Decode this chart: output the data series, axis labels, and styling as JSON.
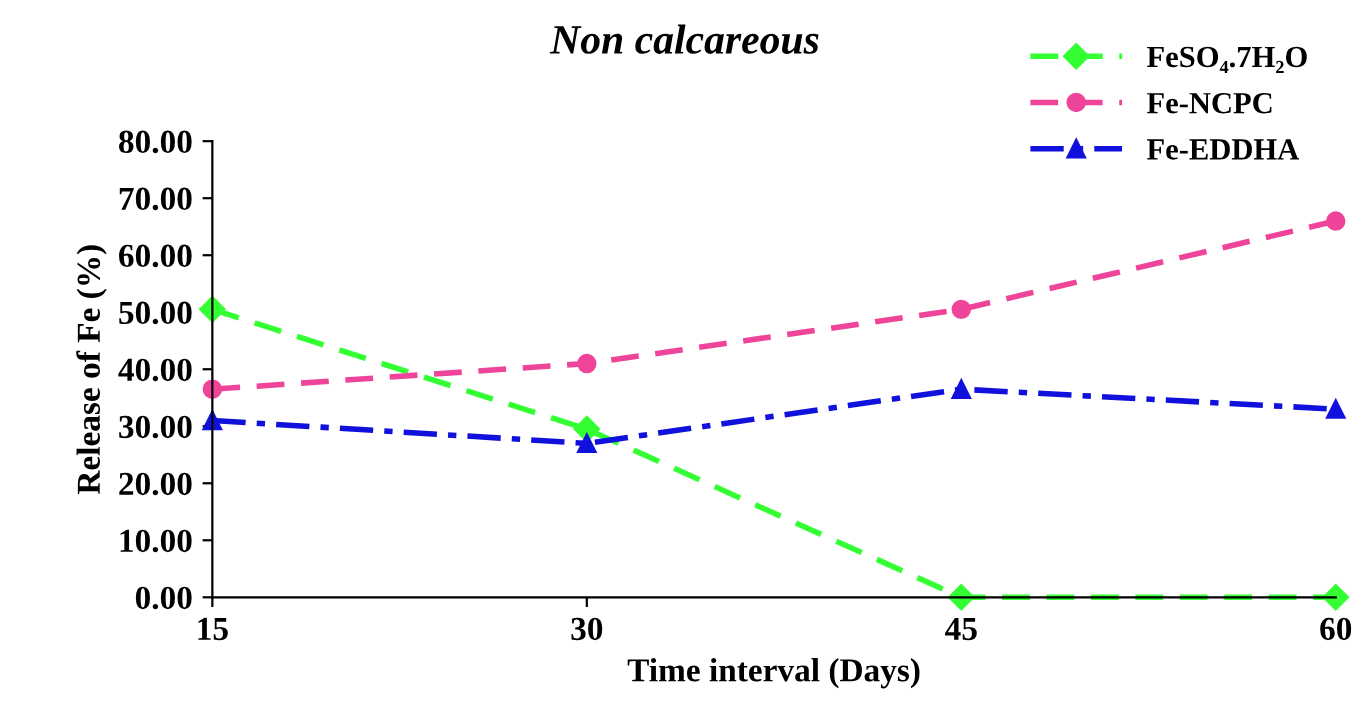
{
  "chart_data": {
    "type": "line",
    "title": "Non calcareous",
    "xlabel": "Time interval (Days)",
    "ylabel": "Release of Fe (%)",
    "x": [
      15,
      30,
      45,
      60
    ],
    "xlim": [
      15,
      60
    ],
    "xticks": [
      15,
      30,
      45,
      60
    ],
    "ylim": [
      0,
      80
    ],
    "yticks": [
      {
        "value": 0,
        "label": "0.00"
      },
      {
        "value": 10,
        "label": "10.00"
      },
      {
        "value": 20,
        "label": "20.00"
      },
      {
        "value": 30,
        "label": "30.00"
      },
      {
        "value": 40,
        "label": "40.00"
      },
      {
        "value": 50,
        "label": "50.00"
      },
      {
        "value": 60,
        "label": "60.00"
      },
      {
        "value": 70,
        "label": "70.00"
      },
      {
        "value": 80,
        "label": "80.00"
      }
    ],
    "grid": false,
    "legend": "top right",
    "series": [
      {
        "name": "FeSO₄.7H₂O",
        "color": "#33ff33",
        "values": [
          50.5,
          29.5,
          0,
          0
        ],
        "marker": "diamond",
        "line_style": "dashed"
      },
      {
        "name": "Fe-NCPC",
        "color": "#ee4499",
        "values": [
          36.5,
          41,
          50.5,
          66
        ],
        "marker": "circle",
        "line_style": "dashed"
      },
      {
        "name": "Fe-EDDHA",
        "color": "#1111dd",
        "values": [
          31,
          27,
          36.5,
          33
        ],
        "marker": "triangle",
        "line_style": "dashdot"
      }
    ]
  }
}
